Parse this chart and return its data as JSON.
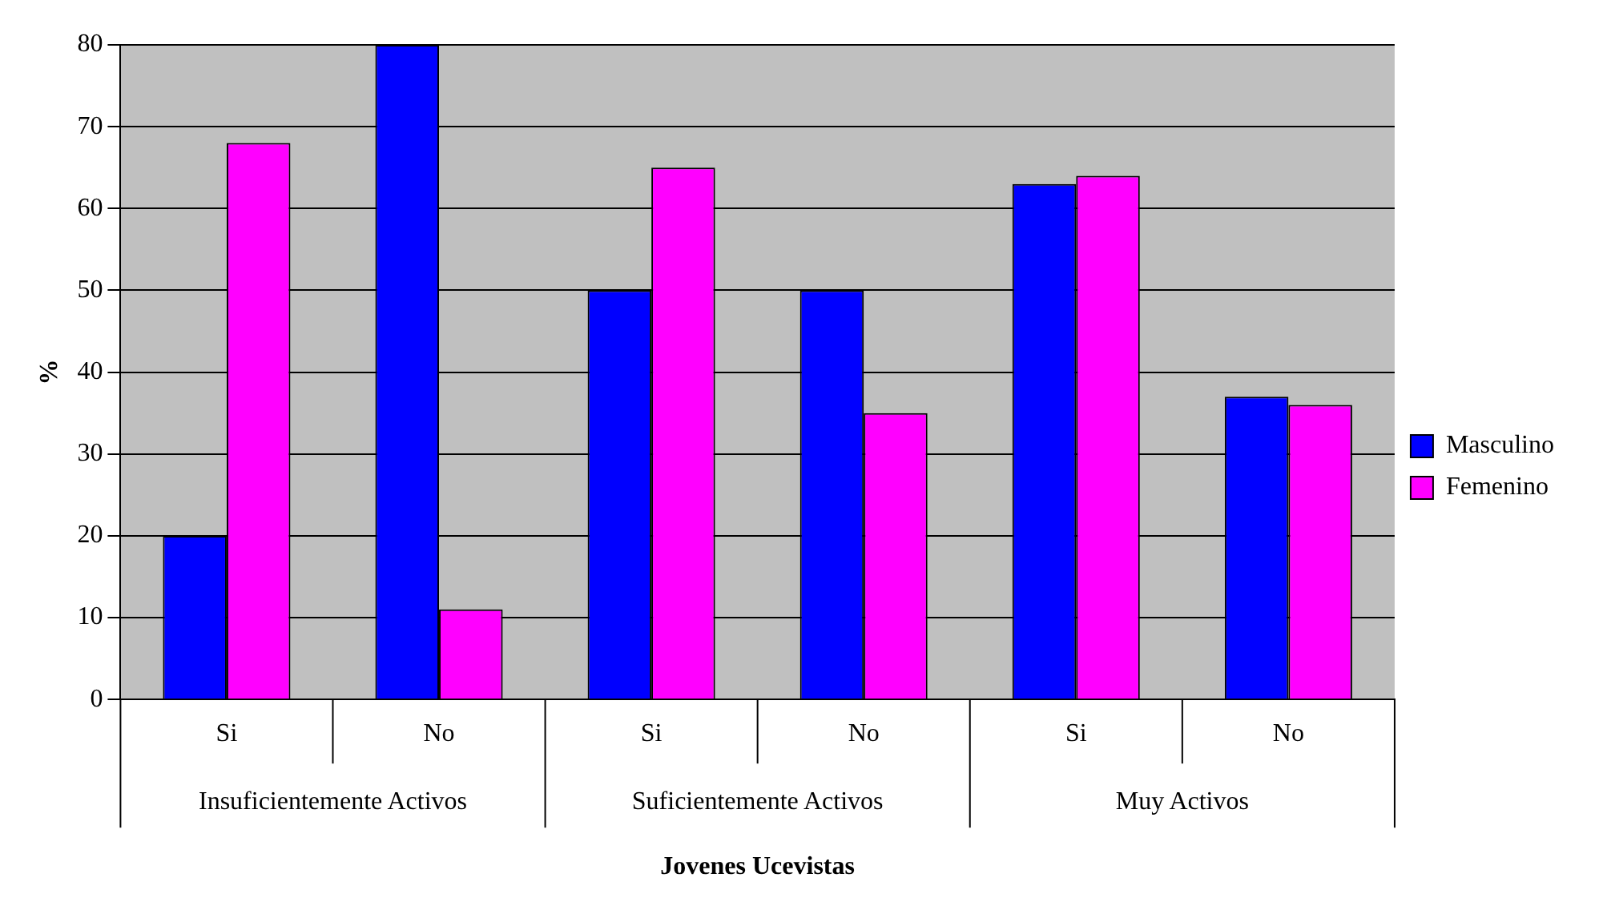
{
  "chart_data": {
    "type": "bar",
    "xlabel": "Jovenes Ucevistas",
    "ylabel": "%",
    "categories": [
      "Si",
      "No",
      "Si",
      "No",
      "Si",
      "No"
    ],
    "series": [
      {
        "name": "Masculino",
        "color": "#0000ff",
        "values": [
          20,
          80,
          50,
          50,
          63,
          37
        ]
      },
      {
        "name": "Femenino",
        "color": "#ff00ff",
        "values": [
          68,
          11,
          65,
          35,
          64,
          36
        ]
      }
    ],
    "ylim": [
      0,
      80
    ],
    "yticks": [
      0,
      10,
      20,
      30,
      40,
      50,
      60,
      70,
      80
    ],
    "grid": "y",
    "legend": "right",
    "annotations": [
      "Insuficientemente Activos",
      "Suficientemente Activos",
      "Muy Activos"
    ]
  }
}
